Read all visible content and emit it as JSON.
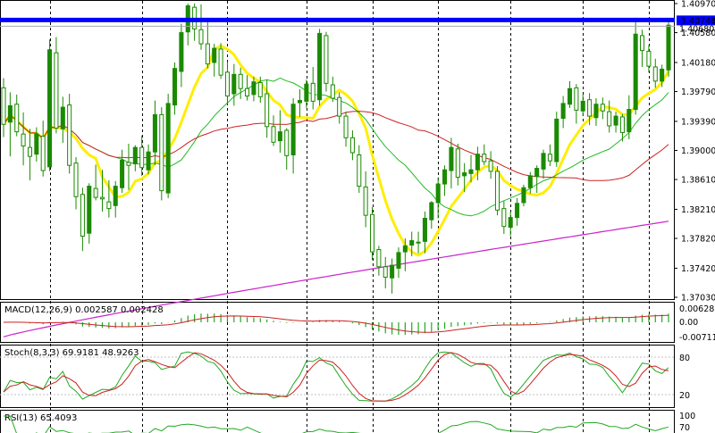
{
  "chart_data": {
    "type": "candlestick",
    "colors": {
      "bull": "#1a8a00",
      "bear": "#1a8a00",
      "ma_fast": "#ffee00",
      "ma_mid": "#22bb22",
      "ma_slow": "#cc2222",
      "ma_long": "#cc22cc",
      "hline": "#0000ff",
      "macd_hist": "#22aa22",
      "macd_signal": "#cc2222",
      "stoch_main": "#22aa22",
      "stoch_signal": "#cc2222",
      "rsi": "#22aa22"
    },
    "price_panel": {
      "ylim": [
        1.3703,
        1.4097
      ],
      "ticks": [
        "1.40970",
        "1.40580",
        "1.40180",
        "1.39790",
        "1.39390",
        "1.39000",
        "1.38610",
        "1.38210",
        "1.37820",
        "1.37420",
        "1.37030"
      ],
      "current_price": "1.40748",
      "second_price": "1.40680",
      "resistance_level": 1.4075,
      "candles": [
        [
          1.3984,
          1.3997,
          1.3918,
          1.3935
        ],
        [
          1.3938,
          1.3978,
          1.3892,
          1.396
        ],
        [
          1.3962,
          1.3975,
          1.3919,
          1.3925
        ],
        [
          1.3922,
          1.3951,
          1.388,
          1.3906
        ],
        [
          1.3904,
          1.3929,
          1.386,
          1.3892
        ],
        [
          1.3895,
          1.3931,
          1.3885,
          1.3922
        ],
        [
          1.3919,
          1.394,
          1.3865,
          1.3873
        ],
        [
          1.3878,
          1.4049,
          1.3872,
          1.4035
        ],
        [
          1.4031,
          1.4052,
          1.3923,
          1.393
        ],
        [
          1.3929,
          1.3972,
          1.391,
          1.3958
        ],
        [
          1.3961,
          1.3976,
          1.3869,
          1.388
        ],
        [
          1.3883,
          1.3891,
          1.3821,
          1.3838
        ],
        [
          1.3841,
          1.385,
          1.3765,
          1.3785
        ],
        [
          1.3789,
          1.3856,
          1.3775,
          1.3852
        ],
        [
          1.3849,
          1.3881,
          1.3833,
          1.3837
        ],
        [
          1.3837,
          1.3874,
          1.3818,
          1.3835
        ],
        [
          1.3831,
          1.386,
          1.381,
          1.3822
        ],
        [
          1.3826,
          1.3859,
          1.381,
          1.3852
        ],
        [
          1.385,
          1.3901,
          1.3843,
          1.3887
        ],
        [
          1.3884,
          1.3909,
          1.3847,
          1.388
        ],
        [
          1.3882,
          1.3907,
          1.3872,
          1.3904
        ],
        [
          1.3904,
          1.392,
          1.3866,
          1.3877
        ],
        [
          1.3874,
          1.3908,
          1.3868,
          1.3898
        ],
        [
          1.3898,
          1.3967,
          1.388,
          1.3948
        ],
        [
          1.3948,
          1.3958,
          1.3833,
          1.3846
        ],
        [
          1.3843,
          1.3976,
          1.3836,
          1.3963
        ],
        [
          1.3961,
          1.4018,
          1.3948,
          1.401
        ],
        [
          1.4006,
          1.407,
          1.3985,
          1.4058
        ],
        [
          1.4059,
          1.4097,
          1.4041,
          1.4094
        ],
        [
          1.4092,
          1.4097,
          1.4047,
          1.4063
        ],
        [
          1.4062,
          1.4096,
          1.4035,
          1.4043
        ],
        [
          1.4043,
          1.4074,
          1.401,
          1.4016
        ],
        [
          1.4018,
          1.4043,
          1.3999,
          1.4037
        ],
        [
          1.4036,
          1.4044,
          1.3996,
          1.4001
        ],
        [
          1.4005,
          1.4019,
          1.3962,
          1.3973
        ],
        [
          1.3976,
          1.4016,
          1.396,
          1.4002
        ],
        [
          1.4002,
          1.4011,
          1.3969,
          1.3983
        ],
        [
          1.3983,
          1.4001,
          1.3967,
          1.3973
        ],
        [
          1.3975,
          1.3999,
          1.3966,
          1.3992
        ],
        [
          1.3991,
          1.3999,
          1.3964,
          1.3972
        ],
        [
          1.3976,
          1.3995,
          1.3917,
          1.3932
        ],
        [
          1.3932,
          1.3947,
          1.3906,
          1.3911
        ],
        [
          1.3913,
          1.3954,
          1.3897,
          1.3925
        ],
        [
          1.3927,
          1.393,
          1.3874,
          1.3893
        ],
        [
          1.3894,
          1.397,
          1.3869,
          1.3962
        ],
        [
          1.3964,
          1.3982,
          1.3945,
          1.3967
        ],
        [
          1.3966,
          1.3995,
          1.3957,
          1.3989
        ],
        [
          1.399,
          1.4012,
          1.3955,
          1.3966
        ],
        [
          1.3968,
          1.4063,
          1.396,
          1.4057
        ],
        [
          1.4054,
          1.4059,
          1.3979,
          1.399
        ],
        [
          1.3988,
          1.3999,
          1.3965,
          1.397
        ],
        [
          1.3971,
          1.3978,
          1.3936,
          1.3946
        ],
        [
          1.3946,
          1.3952,
          1.3905,
          1.3917
        ],
        [
          1.3917,
          1.3927,
          1.3887,
          1.3897
        ],
        [
          1.3894,
          1.3907,
          1.3843,
          1.3852
        ],
        [
          1.3851,
          1.3872,
          1.3797,
          1.3813
        ],
        [
          1.3814,
          1.3824,
          1.3753,
          1.3764
        ],
        [
          1.3767,
          1.3772,
          1.3732,
          1.3744
        ],
        [
          1.3744,
          1.3757,
          1.3715,
          1.373
        ],
        [
          1.3729,
          1.3755,
          1.3708,
          1.3746
        ],
        [
          1.3742,
          1.377,
          1.3729,
          1.3763
        ],
        [
          1.3764,
          1.3782,
          1.3738,
          1.3772
        ],
        [
          1.3773,
          1.3791,
          1.3758,
          1.3779
        ],
        [
          1.3776,
          1.3791,
          1.3762,
          1.3777
        ],
        [
          1.3778,
          1.3818,
          1.3762,
          1.3809
        ],
        [
          1.3807,
          1.3832,
          1.3795,
          1.383
        ],
        [
          1.383,
          1.3864,
          1.3809,
          1.3855
        ],
        [
          1.3855,
          1.388,
          1.3839,
          1.3874
        ],
        [
          1.3873,
          1.3917,
          1.3849,
          1.3904
        ],
        [
          1.3902,
          1.3909,
          1.3853,
          1.3864
        ],
        [
          1.3866,
          1.3883,
          1.3844,
          1.387
        ],
        [
          1.3869,
          1.3894,
          1.3857,
          1.3874
        ],
        [
          1.3874,
          1.3905,
          1.386,
          1.3895
        ],
        [
          1.3895,
          1.3908,
          1.388,
          1.3885
        ],
        [
          1.3886,
          1.3899,
          1.3862,
          1.3872
        ],
        [
          1.3872,
          1.3879,
          1.3813,
          1.382
        ],
        [
          1.3822,
          1.3832,
          1.3788,
          1.3798
        ],
        [
          1.3797,
          1.3818,
          1.3785,
          1.381
        ],
        [
          1.381,
          1.3836,
          1.3799,
          1.3829
        ],
        [
          1.383,
          1.3854,
          1.3825,
          1.385
        ],
        [
          1.385,
          1.3871,
          1.3842,
          1.3866
        ],
        [
          1.3865,
          1.388,
          1.3843,
          1.3876
        ],
        [
          1.3875,
          1.3901,
          1.3862,
          1.3896
        ],
        [
          1.3895,
          1.3908,
          1.3879,
          1.3886
        ],
        [
          1.3885,
          1.3952,
          1.3878,
          1.3942
        ],
        [
          1.3943,
          1.3973,
          1.393,
          1.3963
        ],
        [
          1.3962,
          1.3993,
          1.3957,
          1.3983
        ],
        [
          1.3984,
          1.3989,
          1.3936,
          1.3954
        ],
        [
          1.3953,
          1.3975,
          1.3946,
          1.3966
        ],
        [
          1.3968,
          1.3977,
          1.3934,
          1.3946
        ],
        [
          1.3944,
          1.397,
          1.3933,
          1.3962
        ],
        [
          1.3962,
          1.3971,
          1.3942,
          1.3953
        ],
        [
          1.3952,
          1.3967,
          1.3924,
          1.3933
        ],
        [
          1.3934,
          1.3952,
          1.3924,
          1.3946
        ],
        [
          1.3945,
          1.3949,
          1.3912,
          1.3924
        ],
        [
          1.3925,
          1.3974,
          1.3915,
          1.3955
        ],
        [
          1.3955,
          1.4078,
          1.3948,
          1.4056
        ],
        [
          1.4054,
          1.4062,
          1.4012,
          1.4034
        ],
        [
          1.4033,
          1.4041,
          1.4005,
          1.4013
        ],
        [
          1.4012,
          1.4023,
          1.3984,
          1.3993
        ],
        [
          1.3993,
          1.4015,
          1.3985,
          1.4009
        ],
        [
          1.4008,
          1.4074,
          1.3999,
          1.4068
        ]
      ]
    },
    "macd_panel": {
      "label": "MACD(12,26,9) 0.002587 0.002428",
      "ylim": [
        -0.00711,
        0.006288
      ],
      "ticks": [
        "0.006288",
        "0.00",
        "-0.00711"
      ]
    },
    "stoch_panel": {
      "label": "Stoch(8,3,3) 69.9181 48.9263",
      "ylim": [
        0,
        100
      ],
      "ticks": [
        "80",
        "20"
      ]
    },
    "rsi_panel": {
      "label": "RSI(13) 65.4093",
      "ticks": [
        "100",
        "70"
      ]
    }
  }
}
